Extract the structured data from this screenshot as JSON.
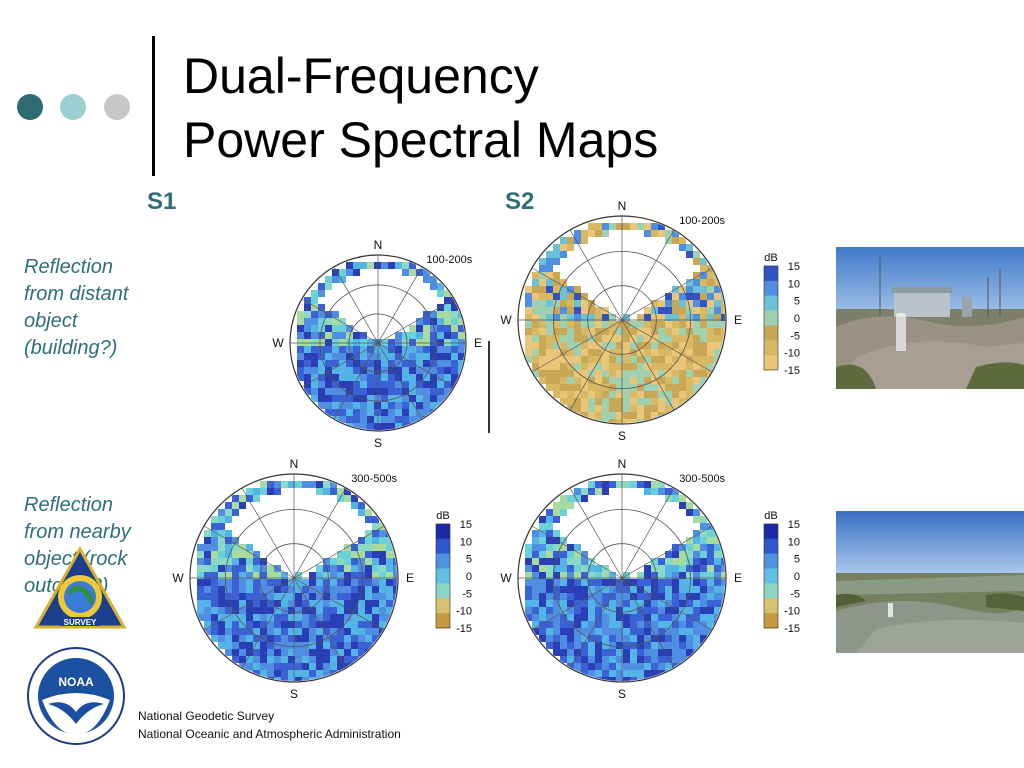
{
  "title_line1": "Dual-Frequency",
  "title_line2": "Power Spectral Maps",
  "col_s1": "S1",
  "col_s2": "S2",
  "note_top": [
    "Reflection",
    "from distant",
    "object",
    "(building?)"
  ],
  "note_bottom": [
    "Reflection",
    "from nearby",
    "object (rock",
    "outcrop?)"
  ],
  "plots": [
    {
      "band": "100-200s",
      "north": "N",
      "south": "S",
      "east": "E",
      "west": "W"
    },
    {
      "band": "100-200s",
      "north": "N",
      "south": "S",
      "east": "E",
      "west": "W"
    },
    {
      "band": "300-500s",
      "north": "N",
      "south": "S",
      "east": "E",
      "west": "W"
    },
    {
      "band": "300-500s",
      "north": "N",
      "south": "S",
      "east": "E",
      "west": "W"
    }
  ],
  "colorbar": {
    "unit": "dB",
    "ticks": [
      "15",
      "10",
      "5",
      "0",
      "-5",
      "-10",
      "-15"
    ]
  },
  "footer_line1": "National Geodetic Survey",
  "footer_line2": "National Oceanic and Atmospheric Administration",
  "logo_ngs_text": "NATIONAL GEODETIC SURVEY",
  "logo_noaa_text": "NOAA",
  "colors": {
    "dot1": "#2d6b70",
    "dot2": "#9ccfd2",
    "dot3": "#c8c8c8",
    "accent_text": "#2e6f7a"
  }
}
